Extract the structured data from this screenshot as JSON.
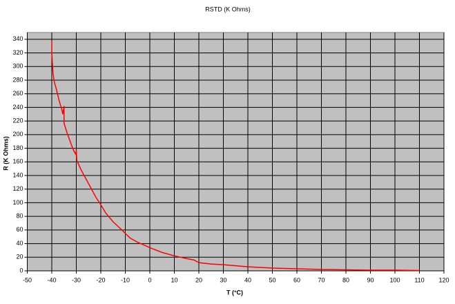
{
  "chart_data": {
    "type": "line",
    "title": "RSTD (K Ohms)",
    "x_label": "T (°C)",
    "y_label": "R (K Ohms)",
    "x": [
      -40,
      -40,
      -39.5,
      -39,
      -38,
      -37,
      -36,
      -35.5,
      -35,
      -35,
      -34,
      -33,
      -32,
      -31,
      -30.2,
      -30,
      -29.8,
      -28,
      -25,
      -22,
      -20,
      -18,
      -15,
      -12,
      -10,
      -8,
      -5,
      0,
      5,
      10,
      15,
      18,
      20,
      25,
      30,
      40,
      50,
      60,
      70,
      80,
      90,
      100,
      110
    ],
    "series": [
      {
        "name": "RSTD",
        "color": "#ff0000",
        "values": [
          338,
          320,
          290,
          278,
          265,
          250,
          238,
          230,
          242,
          217,
          205,
          195,
          185,
          176,
          171,
          178,
          162,
          148,
          128,
          108,
          97,
          85,
          72,
          62,
          55,
          48,
          42,
          34,
          27,
          22,
          18,
          16,
          12,
          10,
          9,
          6,
          4,
          3,
          2,
          1.5,
          1,
          1,
          0.5
        ]
      }
    ],
    "xlim": [
      -50,
      120
    ],
    "xticks": [
      -50,
      -40,
      -30,
      -20,
      -10,
      0,
      10,
      20,
      30,
      40,
      50,
      60,
      70,
      80,
      90,
      100,
      110,
      120
    ],
    "ylim": [
      0,
      350
    ],
    "yticks": [
      0,
      20,
      40,
      60,
      80,
      100,
      120,
      140,
      160,
      180,
      200,
      220,
      240,
      260,
      280,
      300,
      320,
      340
    ],
    "grid": true,
    "background": "#c0c0c0"
  }
}
